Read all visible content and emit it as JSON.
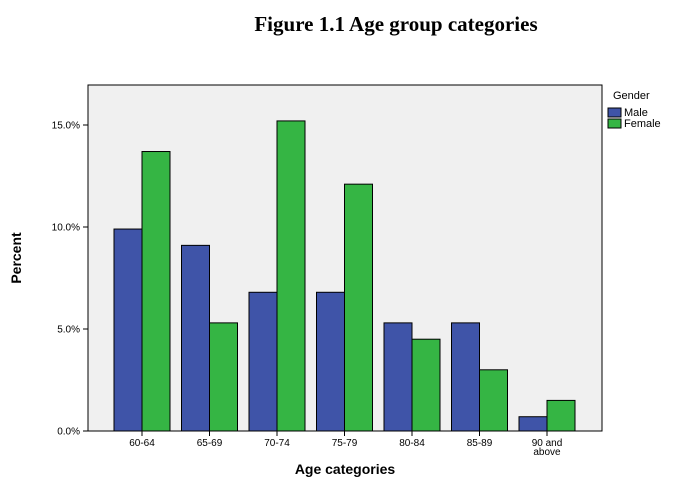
{
  "chart_data": {
    "type": "bar",
    "title": "Figure 1.1 Age group categories",
    "xlabel": "Age categories",
    "ylabel": "Percent",
    "categories": [
      "60-64",
      "65-69",
      "70-74",
      "75-79",
      "80-84",
      "85-89",
      "90 and above"
    ],
    "category_lines": [
      [
        "60-64"
      ],
      [
        "65-69"
      ],
      [
        "70-74"
      ],
      [
        "75-79"
      ],
      [
        "80-84"
      ],
      [
        "85-89"
      ],
      [
        "90 and",
        "above"
      ]
    ],
    "series": [
      {
        "name": "Male",
        "color": "#3f54a8",
        "values": [
          9.9,
          9.1,
          6.8,
          6.8,
          5.3,
          5.3,
          0.7
        ]
      },
      {
        "name": "Female",
        "color": "#35b544",
        "values": [
          13.7,
          5.3,
          15.2,
          12.1,
          4.5,
          3.0,
          1.5
        ]
      }
    ],
    "y_ticks": [
      0,
      5,
      10,
      15
    ],
    "y_tick_labels": [
      "0.0%",
      "5.0%",
      "10.0%",
      "15.0%"
    ],
    "ylim": [
      0,
      17
    ],
    "legend": {
      "title": "Gender",
      "position": "right"
    },
    "plot_background": "#f0f0f0",
    "grid": false
  }
}
